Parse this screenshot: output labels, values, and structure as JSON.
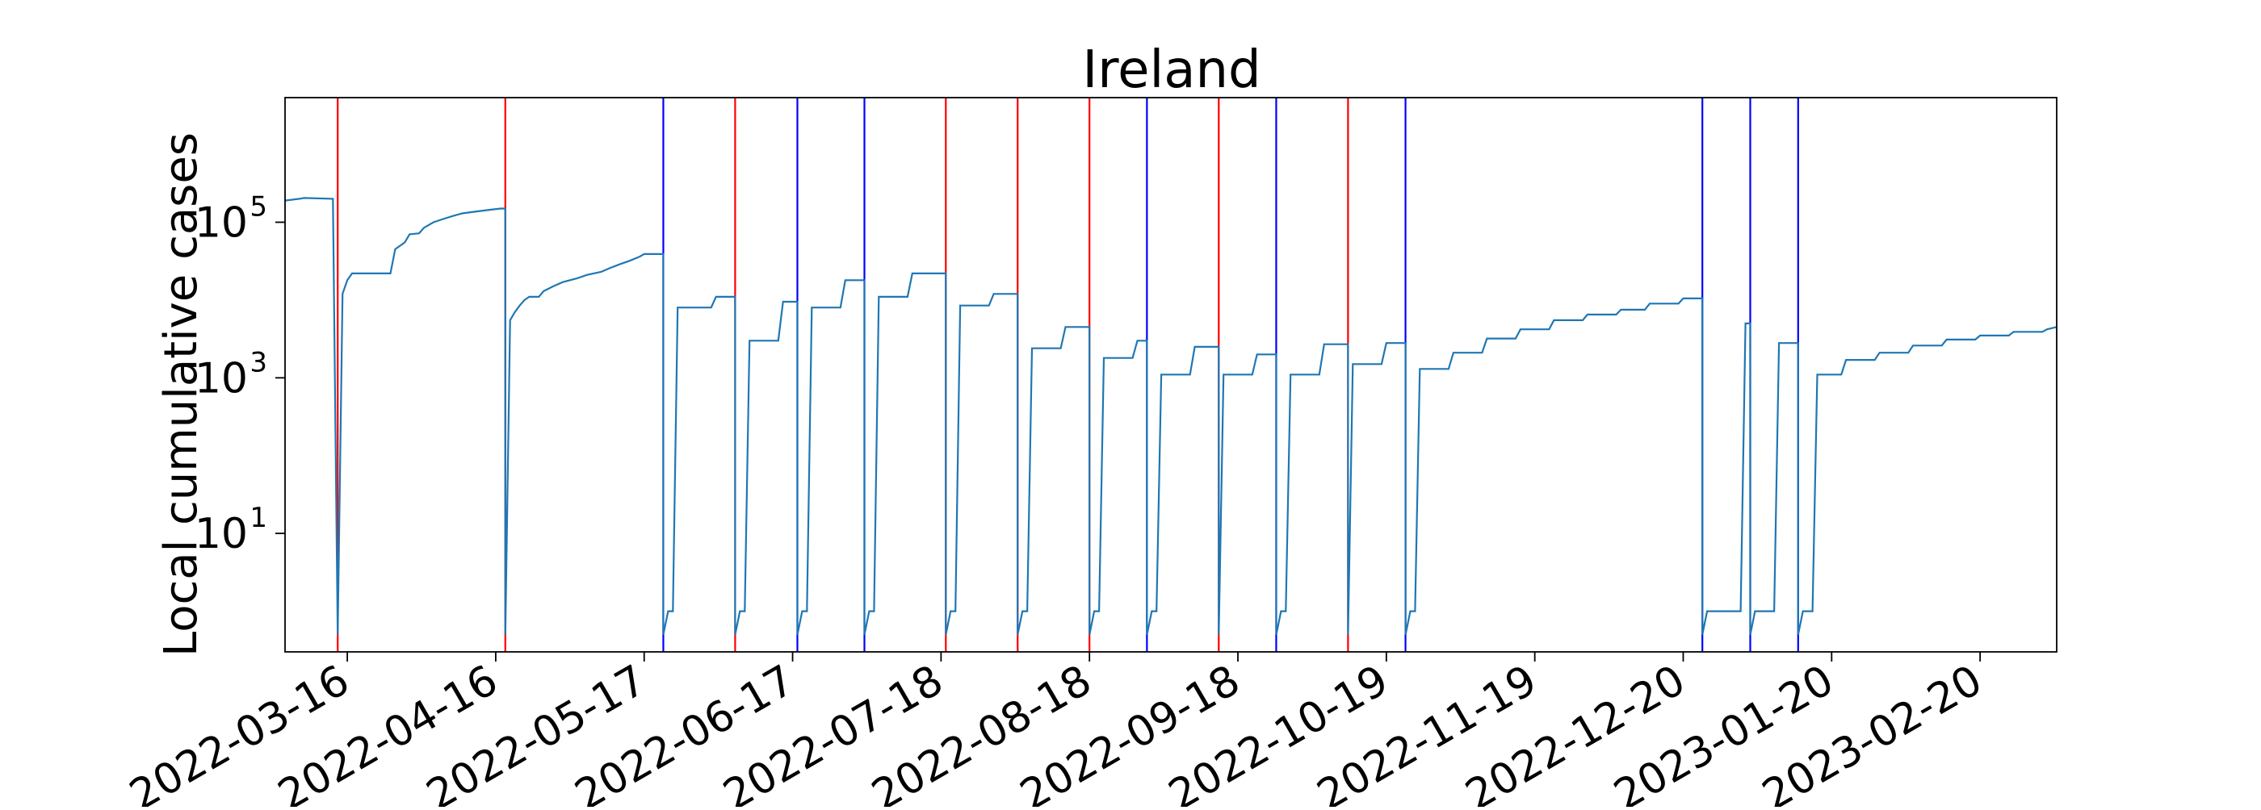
{
  "chart_data": {
    "type": "line",
    "title": "Ireland",
    "xlabel": "",
    "ylabel": "Local cumulative cases",
    "y_scale": "log",
    "ylim": [
      0.3,
      4000000
    ],
    "xlim": [
      "2022-03-03",
      "2023-03-08"
    ],
    "grid": false,
    "legend": "none",
    "colors": {
      "series": "#1f77b4",
      "red_marker": "#ff0000",
      "blue_marker": "#0000ff",
      "frame": "#000000"
    },
    "x_ticks": [
      "2022-03-16",
      "2022-04-16",
      "2022-05-17",
      "2022-06-17",
      "2022-07-18",
      "2022-08-18",
      "2022-09-18",
      "2022-10-19",
      "2022-11-19",
      "2022-12-20",
      "2023-01-20",
      "2023-02-20"
    ],
    "y_ticks": [
      {
        "value": 10,
        "base": "10",
        "exp": "1"
      },
      {
        "value": 1000,
        "base": "10",
        "exp": "3"
      },
      {
        "value": 100000,
        "base": "10",
        "exp": "5"
      }
    ],
    "red_lines": [
      "2022-03-14",
      "2022-04-18",
      "2022-06-05",
      "2022-07-19",
      "2022-08-03",
      "2022-08-18",
      "2022-09-14",
      "2022-10-11"
    ],
    "blue_lines": [
      "2022-05-21",
      "2022-06-18",
      "2022-07-02",
      "2022-08-30",
      "2022-09-26",
      "2022-10-23",
      "2022-12-24",
      "2023-01-03",
      "2023-01-13"
    ],
    "series": [
      {
        "segments": [
          [
            [
              "2022-03-03",
              190000
            ],
            [
              "2022-03-06",
              200000
            ],
            [
              "2022-03-07",
              205000
            ],
            [
              "2022-03-13",
              200000
            ],
            [
              "2022-03-14",
              0.5
            ]
          ],
          [
            [
              "2022-03-14",
              0.5
            ],
            [
              "2022-03-15",
              12000
            ],
            [
              "2022-03-16",
              18000
            ],
            [
              "2022-03-17",
              22000
            ],
            [
              "2022-03-20",
              22000
            ],
            [
              "2022-03-21",
              22000
            ],
            [
              "2022-03-25",
              22000
            ],
            [
              "2022-03-26",
              45000
            ],
            [
              "2022-03-28",
              55000
            ],
            [
              "2022-03-29",
              70000
            ],
            [
              "2022-03-31",
              72000
            ],
            [
              "2022-04-01",
              85000
            ],
            [
              "2022-04-03",
              100000
            ],
            [
              "2022-04-05",
              110000
            ],
            [
              "2022-04-07",
              120000
            ],
            [
              "2022-04-09",
              130000
            ],
            [
              "2022-04-11",
              135000
            ],
            [
              "2022-04-13",
              140000
            ],
            [
              "2022-04-15",
              145000
            ],
            [
              "2022-04-17",
              150000
            ],
            [
              "2022-04-18",
              150000
            ],
            [
              "2022-04-18",
              0.5
            ]
          ],
          [
            [
              "2022-04-18",
              0.5
            ],
            [
              "2022-04-19",
              5500
            ],
            [
              "2022-04-20",
              7000
            ],
            [
              "2022-04-21",
              8500
            ],
            [
              "2022-04-22",
              10000
            ],
            [
              "2022-04-23",
              11000
            ],
            [
              "2022-04-25",
              11000
            ],
            [
              "2022-04-26",
              13000
            ],
            [
              "2022-04-28",
              15000
            ],
            [
              "2022-04-30",
              17000
            ],
            [
              "2022-05-03",
              19000
            ],
            [
              "2022-05-05",
              21000
            ],
            [
              "2022-05-08",
              23000
            ],
            [
              "2022-05-10",
              26000
            ],
            [
              "2022-05-12",
              29000
            ],
            [
              "2022-05-14",
              32000
            ],
            [
              "2022-05-16",
              36000
            ],
            [
              "2022-05-17",
              39000
            ],
            [
              "2022-05-21",
              39000
            ],
            [
              "2022-05-21",
              0.5
            ]
          ],
          [
            [
              "2022-05-21",
              0.5
            ],
            [
              "2022-05-22",
              1
            ],
            [
              "2022-05-23",
              1
            ],
            [
              "2022-05-24",
              8000
            ],
            [
              "2022-05-31",
              8000
            ],
            [
              "2022-06-01",
              11000
            ],
            [
              "2022-06-05",
              11000
            ],
            [
              "2022-06-05",
              0.5
            ]
          ],
          [
            [
              "2022-06-05",
              0.5
            ],
            [
              "2022-06-06",
              1
            ],
            [
              "2022-06-07",
              1
            ],
            [
              "2022-06-08",
              3000
            ],
            [
              "2022-06-14",
              3000
            ],
            [
              "2022-06-15",
              9500
            ],
            [
              "2022-06-18",
              9500
            ],
            [
              "2022-06-18",
              0.5
            ]
          ],
          [
            [
              "2022-06-18",
              0.5
            ],
            [
              "2022-06-19",
              1
            ],
            [
              "2022-06-20",
              1
            ],
            [
              "2022-06-21",
              8000
            ],
            [
              "2022-06-27",
              8000
            ],
            [
              "2022-06-28",
              18000
            ],
            [
              "2022-07-02",
              18000
            ],
            [
              "2022-07-02",
              0.5
            ]
          ],
          [
            [
              "2022-07-02",
              0.5
            ],
            [
              "2022-07-03",
              1
            ],
            [
              "2022-07-04",
              1
            ],
            [
              "2022-07-05",
              11000
            ],
            [
              "2022-07-11",
              11000
            ],
            [
              "2022-07-12",
              22000
            ],
            [
              "2022-07-16",
              22000
            ],
            [
              "2022-07-19",
              22000
            ],
            [
              "2022-07-19",
              0.5
            ]
          ],
          [
            [
              "2022-07-19",
              0.5
            ],
            [
              "2022-07-20",
              1
            ],
            [
              "2022-07-21",
              1
            ],
            [
              "2022-07-22",
              8500
            ],
            [
              "2022-07-28",
              8500
            ],
            [
              "2022-07-29",
              12000
            ],
            [
              "2022-08-03",
              12000
            ],
            [
              "2022-08-03",
              0.5
            ]
          ],
          [
            [
              "2022-08-03",
              0.5
            ],
            [
              "2022-08-04",
              1
            ],
            [
              "2022-08-05",
              1
            ],
            [
              "2022-08-06",
              2400
            ],
            [
              "2022-08-12",
              2400
            ],
            [
              "2022-08-13",
              4500
            ],
            [
              "2022-08-18",
              4500
            ],
            [
              "2022-08-18",
              0.5
            ]
          ],
          [
            [
              "2022-08-18",
              0.5
            ],
            [
              "2022-08-19",
              1
            ],
            [
              "2022-08-20",
              1
            ],
            [
              "2022-08-21",
              1800
            ],
            [
              "2022-08-27",
              1800
            ],
            [
              "2022-08-28",
              3000
            ],
            [
              "2022-08-30",
              3000
            ],
            [
              "2022-08-30",
              0.5
            ]
          ],
          [
            [
              "2022-08-30",
              0.5
            ],
            [
              "2022-08-31",
              1
            ],
            [
              "2022-09-01",
              1
            ],
            [
              "2022-09-02",
              1100
            ],
            [
              "2022-09-08",
              1100
            ],
            [
              "2022-09-09",
              2500
            ],
            [
              "2022-09-14",
              2500
            ],
            [
              "2022-09-14",
              0.5
            ]
          ],
          [
            [
              "2022-09-14",
              0.5
            ],
            [
              "2022-09-15",
              1100
            ],
            [
              "2022-09-21",
              1100
            ],
            [
              "2022-09-22",
              2000
            ],
            [
              "2022-09-26",
              2000
            ],
            [
              "2022-09-26",
              0.5
            ]
          ],
          [
            [
              "2022-09-26",
              0.5
            ],
            [
              "2022-09-27",
              1
            ],
            [
              "2022-09-28",
              1
            ],
            [
              "2022-09-29",
              1100
            ],
            [
              "2022-10-05",
              1100
            ],
            [
              "2022-10-06",
              2700
            ],
            [
              "2022-10-11",
              2700
            ],
            [
              "2022-10-11",
              0.5
            ]
          ],
          [
            [
              "2022-10-11",
              0.5
            ],
            [
              "2022-10-12",
              1500
            ],
            [
              "2022-10-18",
              1500
            ],
            [
              "2022-10-19",
              2800
            ],
            [
              "2022-10-23",
              2800
            ],
            [
              "2022-10-23",
              0.5
            ]
          ],
          [
            [
              "2022-10-23",
              0.5
            ],
            [
              "2022-10-24",
              1
            ],
            [
              "2022-10-25",
              1
            ],
            [
              "2022-10-26",
              1300
            ],
            [
              "2022-11-01",
              1300
            ],
            [
              "2022-11-02",
              2100
            ],
            [
              "2022-11-08",
              2100
            ],
            [
              "2022-11-09",
              3200
            ],
            [
              "2022-11-15",
              3200
            ],
            [
              "2022-11-16",
              4200
            ],
            [
              "2022-11-22",
              4200
            ],
            [
              "2022-11-23",
              5500
            ],
            [
              "2022-11-29",
              5500
            ],
            [
              "2022-11-30",
              6500
            ],
            [
              "2022-12-06",
              6500
            ],
            [
              "2022-12-07",
              7500
            ],
            [
              "2022-12-12",
              7500
            ],
            [
              "2022-12-13",
              9000
            ],
            [
              "2022-12-19",
              9000
            ],
            [
              "2022-12-20",
              10500
            ],
            [
              "2022-12-24",
              10500
            ],
            [
              "2022-12-24",
              0.5
            ]
          ],
          [
            [
              "2022-12-24",
              0.5
            ],
            [
              "2022-12-25",
              1
            ],
            [
              "2023-01-01",
              1
            ],
            [
              "2023-01-02",
              5000
            ],
            [
              "2023-01-03",
              5000
            ],
            [
              "2023-01-03",
              0.5
            ]
          ],
          [
            [
              "2023-01-03",
              0.5
            ],
            [
              "2023-01-04",
              1
            ],
            [
              "2023-01-08",
              1
            ],
            [
              "2023-01-09",
              2800
            ],
            [
              "2023-01-13",
              2800
            ],
            [
              "2023-01-13",
              0.5
            ]
          ],
          [
            [
              "2023-01-13",
              0.5
            ],
            [
              "2023-01-14",
              1
            ],
            [
              "2023-01-16",
              1
            ],
            [
              "2023-01-17",
              1100
            ],
            [
              "2023-01-22",
              1100
            ],
            [
              "2023-01-23",
              1700
            ],
            [
              "2023-01-29",
              1700
            ],
            [
              "2023-01-30",
              2100
            ],
            [
              "2023-02-05",
              2100
            ],
            [
              "2023-02-06",
              2600
            ],
            [
              "2023-02-12",
              2600
            ],
            [
              "2023-02-13",
              3100
            ],
            [
              "2023-02-19",
              3100
            ],
            [
              "2023-02-20",
              3500
            ],
            [
              "2023-02-26",
              3500
            ],
            [
              "2023-02-27",
              3900
            ],
            [
              "2023-03-05",
              3900
            ],
            [
              "2023-03-06",
              4200
            ],
            [
              "2023-03-08",
              4500
            ]
          ]
        ]
      }
    ]
  }
}
